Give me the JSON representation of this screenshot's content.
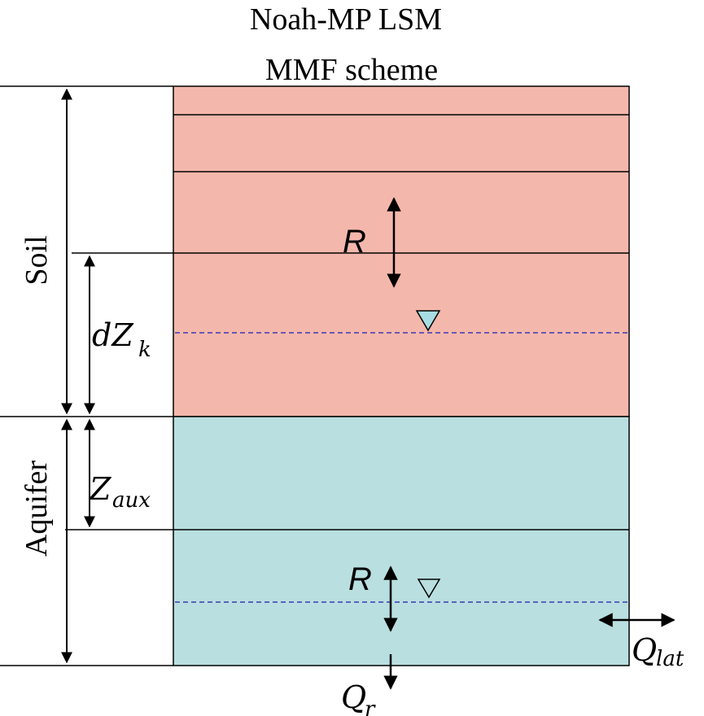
{
  "title": {
    "line1": "Noah-MP LSM",
    "line2": "MMF scheme"
  },
  "layers": {
    "soil": {
      "label": "Soil",
      "color": "#f4b7ab"
    },
    "aquifer": {
      "label": "Aquifer",
      "color": "#b9dfe0"
    }
  },
  "labels": {
    "dzk": {
      "base": "dZ",
      "sub": "k"
    },
    "zaux": {
      "base": "Z",
      "sub": "aux"
    },
    "r_soil": "R",
    "r_aquifer": "R",
    "qr": {
      "base": "Q",
      "sub": "r"
    },
    "qlat": {
      "base": "Q",
      "sub": "lat"
    }
  },
  "colors": {
    "water_table_line": "#3b3bb0",
    "water_table_marker_fill": "#a8dde3",
    "line": "#000000"
  },
  "symbols": {
    "water_table": "triangle-down-icon"
  }
}
